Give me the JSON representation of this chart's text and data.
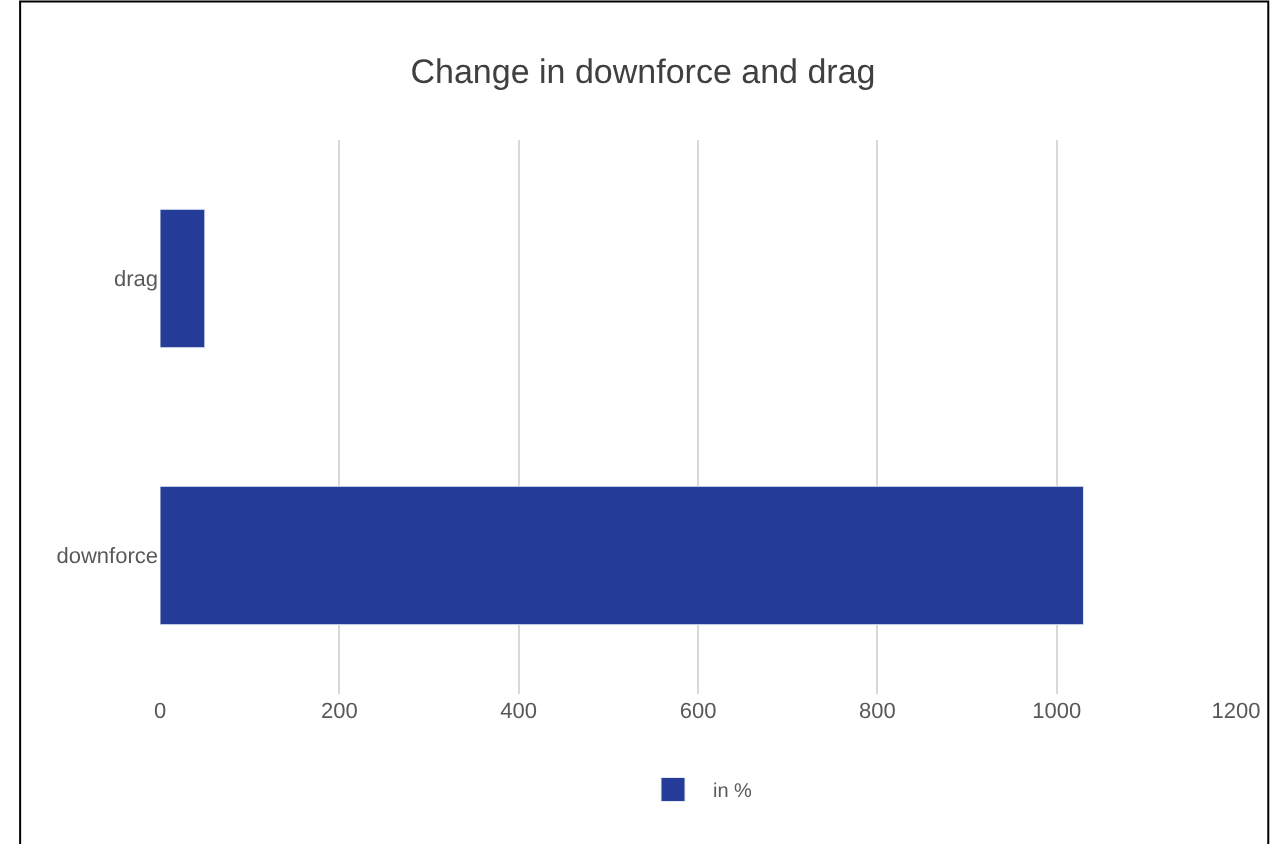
{
  "chart_data": {
    "type": "bar",
    "title": "Change in downforce and drag",
    "orientation": "horizontal",
    "categories": [
      "drag",
      "downforce"
    ],
    "series": [
      {
        "name": "in %",
        "color": "#253c98",
        "values": [
          50,
          1030
        ]
      }
    ],
    "xlim": [
      0,
      1200
    ],
    "xticks": [
      0,
      200,
      400,
      600,
      800,
      1000,
      1200
    ],
    "grid": "x",
    "legend": "bottom"
  }
}
